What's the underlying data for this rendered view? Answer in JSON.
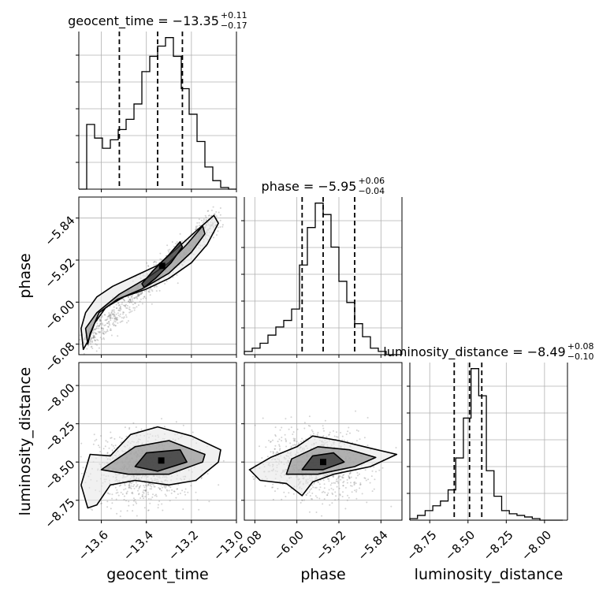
{
  "chart_data": {
    "type": "corner",
    "parameters": [
      "geocent_time",
      "phase",
      "luminosity_distance"
    ],
    "ranges": {
      "geocent_time": [
        -13.7,
        -13.0
      ],
      "phase": [
        -6.1,
        -5.8
      ],
      "luminosity_distance": [
        -8.88,
        -7.85
      ]
    },
    "ticks": {
      "geocent_time": [
        -13.6,
        -13.4,
        -13.2,
        -13.0
      ],
      "phase": [
        -6.08,
        -6.0,
        -5.92,
        -5.84
      ],
      "luminosity_distance": [
        -8.75,
        -8.5,
        -8.25,
        -8.0
      ]
    },
    "tick_labels": {
      "geocent_time": [
        "−13.6",
        "−13.4",
        "−13.2",
        "−13.0"
      ],
      "phase": [
        "−6.08",
        "−6.00",
        "−5.92",
        "−5.84"
      ],
      "luminosity_distance": [
        "−8.75",
        "−8.50",
        "−8.25",
        "−8.00"
      ]
    },
    "titles": [
      {
        "param": "geocent_time",
        "prefix": "geocent_time = −13.35",
        "plus": "+0.11",
        "minus": "−0.17"
      },
      {
        "param": "phase",
        "prefix": "phase = −5.95",
        "plus": "+0.06",
        "minus": "−0.04"
      },
      {
        "param": "luminosity_distance",
        "prefix": "luminosity_distance = −8.49",
        "plus": "+0.08",
        "minus": "−0.10"
      }
    ],
    "quantiles": {
      "geocent_time": [
        -13.52,
        -13.35,
        -13.24
      ],
      "phase": [
        -5.99,
        -5.95,
        -5.89
      ],
      "luminosity_distance": [
        -8.59,
        -8.49,
        -8.41
      ]
    },
    "histograms": {
      "geocent_time": {
        "edges": [
          -13.7,
          -13.665,
          -13.63,
          -13.595,
          -13.56,
          -13.525,
          -13.49,
          -13.455,
          -13.42,
          -13.385,
          -13.35,
          -13.315,
          -13.28,
          -13.245,
          -13.21,
          -13.175,
          -13.14,
          -13.105,
          -13.07,
          -13.035,
          -13.0
        ],
        "counts": [
          0.0,
          0.38,
          0.3,
          0.24,
          0.29,
          0.35,
          0.41,
          0.5,
          0.69,
          0.78,
          0.84,
          0.89,
          0.78,
          0.59,
          0.44,
          0.28,
          0.13,
          0.05,
          0.01,
          0.0
        ]
      },
      "phase": {
        "edges": [
          -6.1,
          -6.085,
          -6.07,
          -6.055,
          -6.04,
          -6.025,
          -6.01,
          -5.995,
          -5.98,
          -5.965,
          -5.95,
          -5.935,
          -5.92,
          -5.905,
          -5.89,
          -5.875,
          -5.86,
          -5.845,
          -5.83,
          -5.815,
          -5.8
        ],
        "counts": [
          0.02,
          0.04,
          0.07,
          0.12,
          0.17,
          0.21,
          0.28,
          0.55,
          0.78,
          0.93,
          0.86,
          0.66,
          0.45,
          0.32,
          0.19,
          0.11,
          0.04,
          0.02,
          0.0,
          0.0
        ]
      },
      "luminosity_distance": {
        "edges": [
          -8.88,
          -8.83,
          -8.78,
          -8.73,
          -8.68,
          -8.63,
          -8.58,
          -8.53,
          -8.48,
          -8.43,
          -8.38,
          -8.33,
          -8.28,
          -8.23,
          -8.18,
          -8.13,
          -8.08,
          -8.03,
          -7.98,
          -7.93,
          -7.88
        ],
        "counts": [
          0.01,
          0.03,
          0.06,
          0.09,
          0.12,
          0.19,
          0.39,
          0.64,
          0.95,
          0.78,
          0.31,
          0.15,
          0.06,
          0.04,
          0.03,
          0.02,
          0.01,
          0.0,
          0.0,
          0.0
        ]
      }
    },
    "contours": {
      "phase_vs_geocent_time": {
        "x": "geocent_time",
        "y": "phase",
        "levels": [
          [
            [
              -13.68,
              -6.09
            ],
            [
              -13.69,
              -6.05
            ],
            [
              -13.67,
              -6.02
            ],
            [
              -13.62,
              -5.99
            ],
            [
              -13.55,
              -5.97
            ],
            [
              -13.45,
              -5.95
            ],
            [
              -13.35,
              -5.93
            ],
            [
              -13.27,
              -5.9
            ],
            [
              -13.18,
              -5.865
            ],
            [
              -13.1,
              -5.835
            ],
            [
              -13.08,
              -5.85
            ],
            [
              -13.13,
              -5.89
            ],
            [
              -13.2,
              -5.925
            ],
            [
              -13.3,
              -5.955
            ],
            [
              -13.4,
              -5.975
            ],
            [
              -13.5,
              -5.99
            ],
            [
              -13.58,
              -6.01
            ],
            [
              -13.63,
              -6.04
            ],
            [
              -13.66,
              -6.075
            ]
          ],
          [
            [
              -13.66,
              -6.08
            ],
            [
              -13.67,
              -6.05
            ],
            [
              -13.62,
              -6.02
            ],
            [
              -13.52,
              -5.985
            ],
            [
              -13.4,
              -5.955
            ],
            [
              -13.3,
              -5.925
            ],
            [
              -13.22,
              -5.89
            ],
            [
              -13.15,
              -5.855
            ],
            [
              -13.14,
              -5.87
            ],
            [
              -13.2,
              -5.905
            ],
            [
              -13.3,
              -5.945
            ],
            [
              -13.42,
              -5.975
            ],
            [
              -13.53,
              -5.995
            ],
            [
              -13.61,
              -6.02
            ],
            [
              -13.65,
              -6.06
            ]
          ],
          [
            [
              -13.42,
              -5.965
            ],
            [
              -13.37,
              -5.94
            ],
            [
              -13.3,
              -5.91
            ],
            [
              -13.25,
              -5.885
            ],
            [
              -13.24,
              -5.895
            ],
            [
              -13.29,
              -5.925
            ],
            [
              -13.36,
              -5.955
            ],
            [
              -13.41,
              -5.972
            ]
          ]
        ]
      },
      "luminosity_distance_vs_geocent_time": {
        "x": "geocent_time",
        "y": "luminosity_distance",
        "levels": [
          [
            [
              -13.69,
              -8.65
            ],
            [
              -13.66,
              -8.8
            ],
            [
              -13.62,
              -8.78
            ],
            [
              -13.56,
              -8.65
            ],
            [
              -13.45,
              -8.62
            ],
            [
              -13.3,
              -8.65
            ],
            [
              -13.18,
              -8.62
            ],
            [
              -13.08,
              -8.5
            ],
            [
              -13.07,
              -8.42
            ],
            [
              -13.2,
              -8.33
            ],
            [
              -13.35,
              -8.27
            ],
            [
              -13.47,
              -8.32
            ],
            [
              -13.56,
              -8.46
            ],
            [
              -13.65,
              -8.45
            ]
          ],
          [
            [
              -13.6,
              -8.55
            ],
            [
              -13.48,
              -8.58
            ],
            [
              -13.3,
              -8.58
            ],
            [
              -13.15,
              -8.5
            ],
            [
              -13.14,
              -8.45
            ],
            [
              -13.3,
              -8.36
            ],
            [
              -13.45,
              -8.4
            ],
            [
              -13.55,
              -8.5
            ]
          ],
          [
            [
              -13.45,
              -8.53
            ],
            [
              -13.35,
              -8.56
            ],
            [
              -13.22,
              -8.5
            ],
            [
              -13.25,
              -8.42
            ],
            [
              -13.4,
              -8.44
            ]
          ]
        ]
      },
      "luminosity_distance_vs_phase": {
        "x": "phase",
        "y": "luminosity_distance",
        "levels": [
          [
            [
              -6.09,
              -8.55
            ],
            [
              -6.07,
              -8.62
            ],
            [
              -6.02,
              -8.64
            ],
            [
              -5.99,
              -8.72
            ],
            [
              -5.97,
              -8.63
            ],
            [
              -5.93,
              -8.58
            ],
            [
              -5.86,
              -8.53
            ],
            [
              -5.81,
              -8.45
            ],
            [
              -5.86,
              -8.41
            ],
            [
              -5.92,
              -8.36
            ],
            [
              -5.97,
              -8.33
            ],
            [
              -6.0,
              -8.4
            ],
            [
              -6.05,
              -8.47
            ]
          ],
          [
            [
              -6.02,
              -8.58
            ],
            [
              -5.96,
              -8.58
            ],
            [
              -5.89,
              -8.53
            ],
            [
              -5.85,
              -8.47
            ],
            [
              -5.9,
              -8.42
            ],
            [
              -5.96,
              -8.4
            ],
            [
              -6.01,
              -8.48
            ]
          ],
          [
            [
              -5.99,
              -8.55
            ],
            [
              -5.95,
              -8.55
            ],
            [
              -5.91,
              -8.5
            ],
            [
              -5.93,
              -8.44
            ],
            [
              -5.97,
              -8.46
            ]
          ]
        ]
      }
    }
  }
}
